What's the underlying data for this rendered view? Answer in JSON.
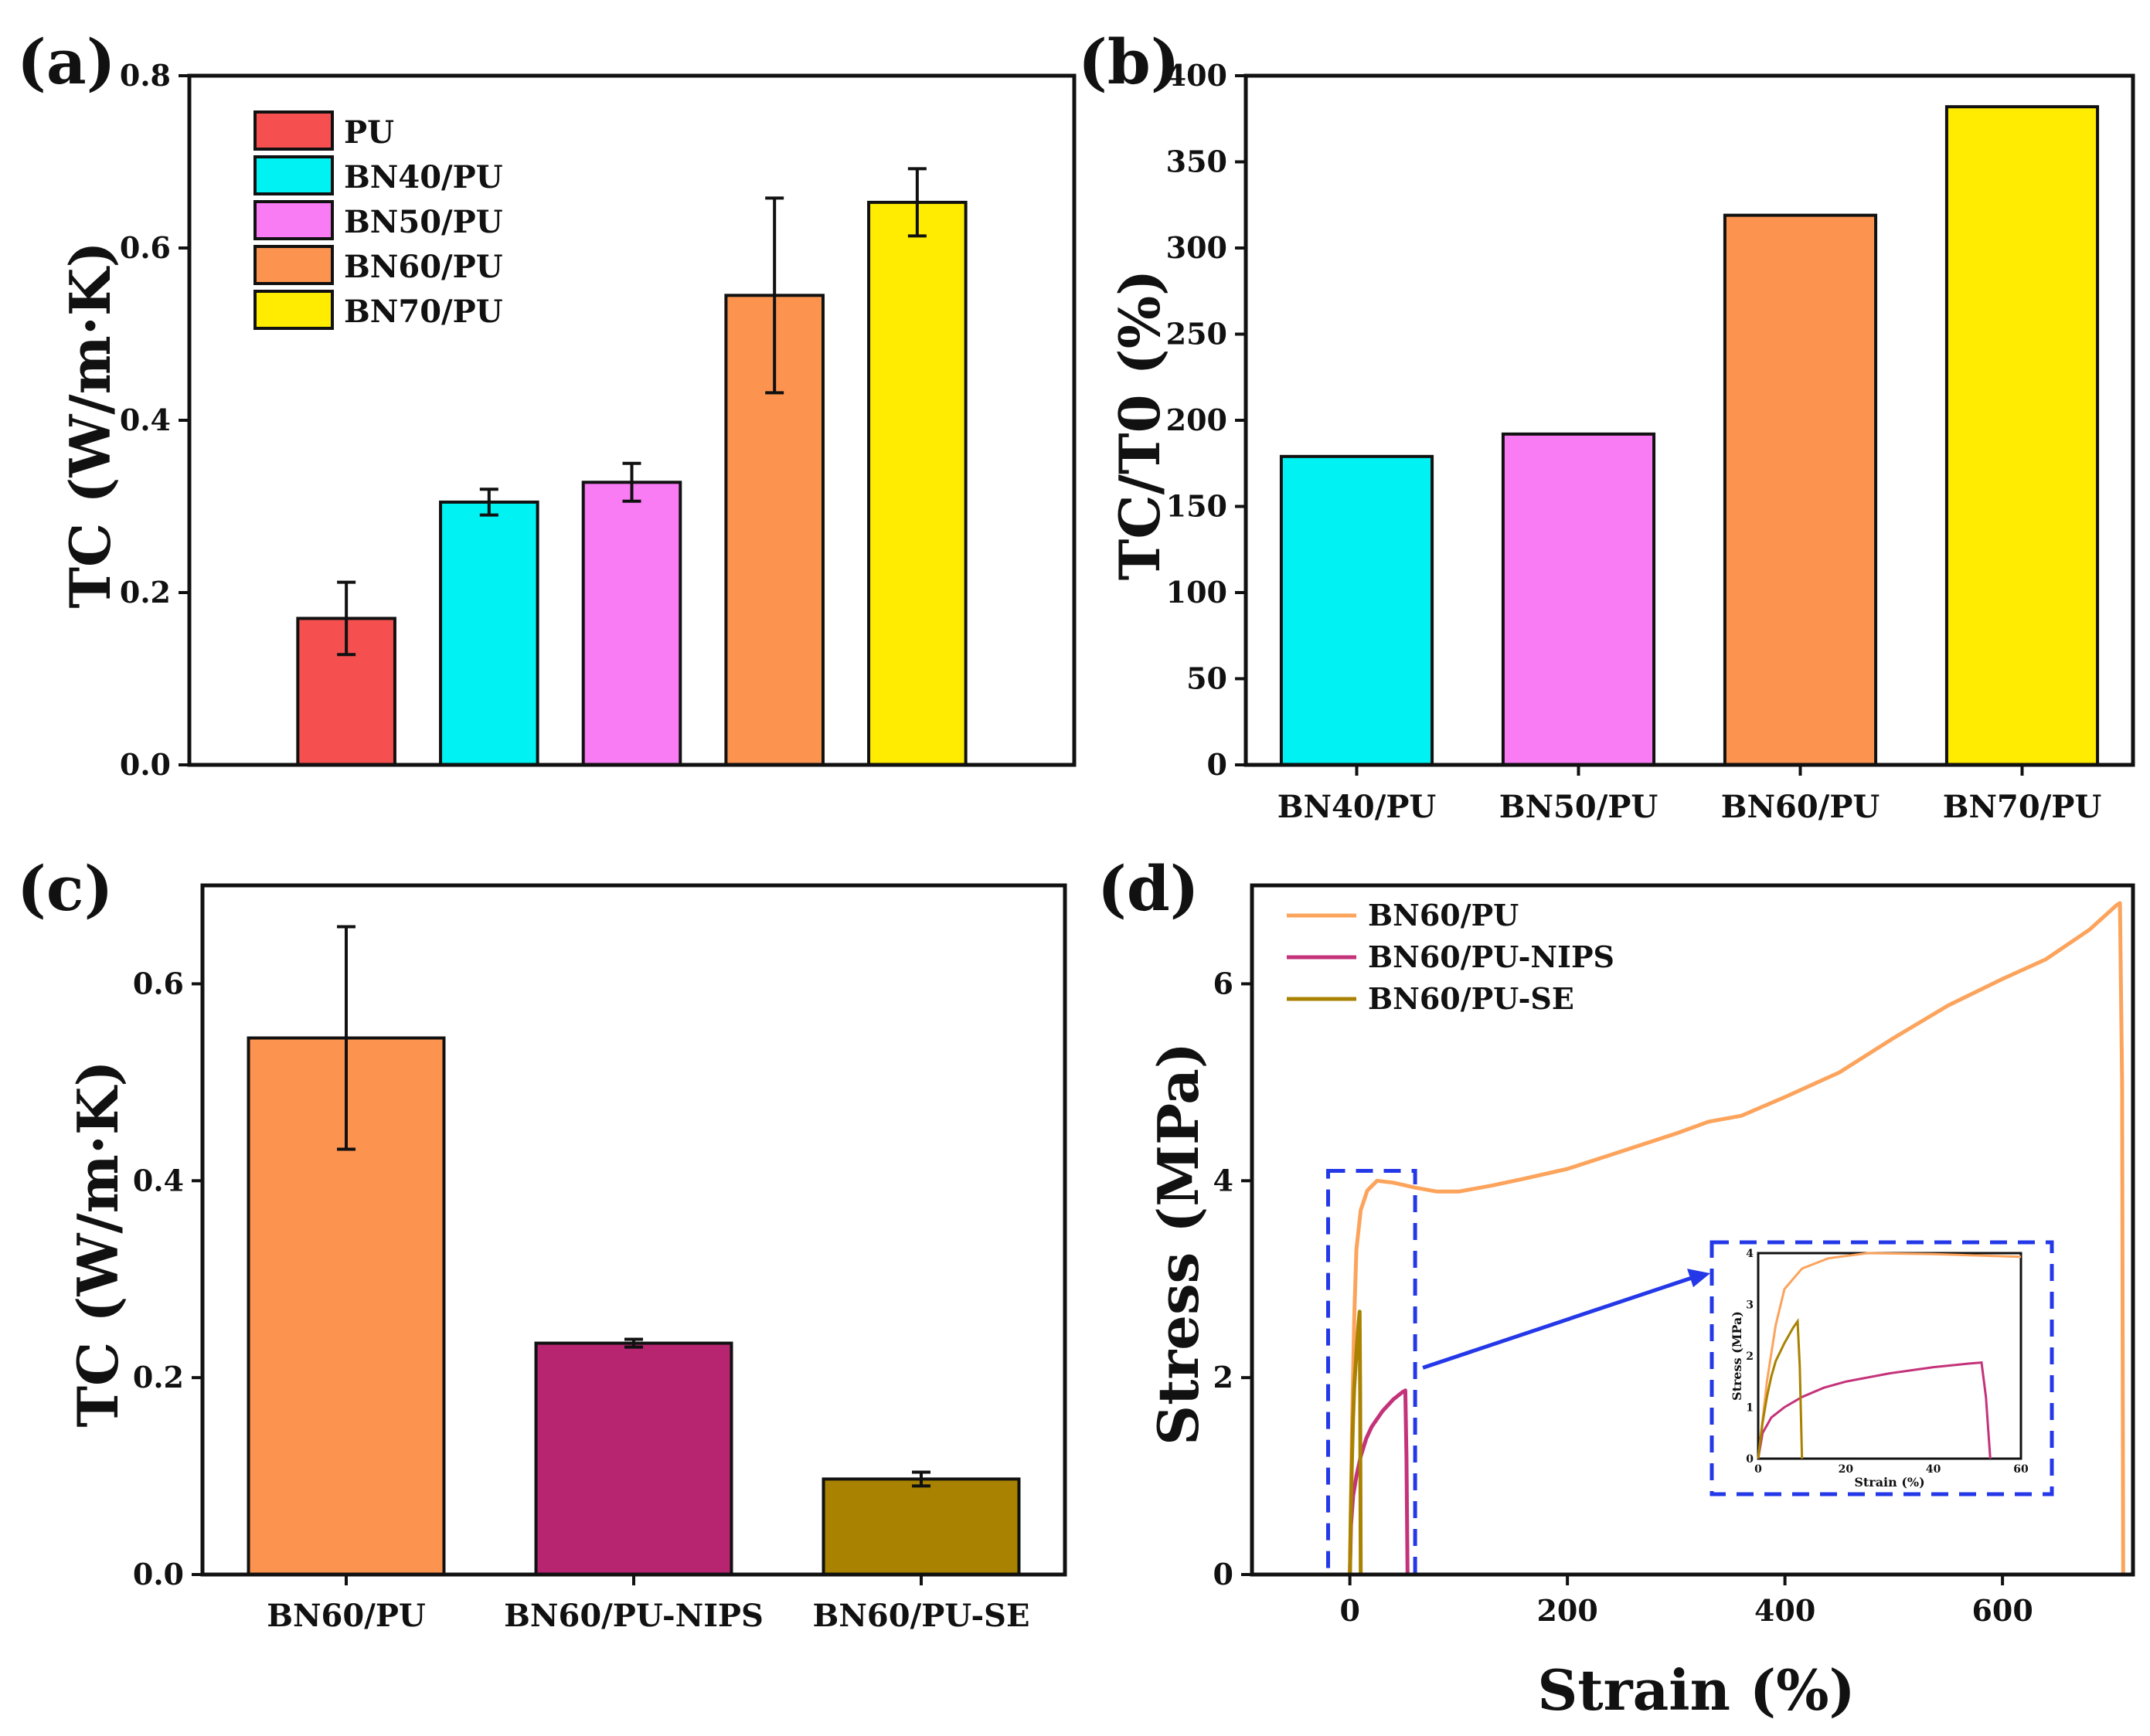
{
  "chart_data": [
    {
      "panel": "(a)",
      "type": "bar",
      "ylabel": "TC (W/m·K)",
      "xlabel": "",
      "ylim": [
        0,
        0.8
      ],
      "yticks": [
        "0.0",
        "0.2",
        "0.4",
        "0.6",
        "0.8"
      ],
      "categories": [
        "PU",
        "BN40/PU",
        "BN50/PU",
        "BN60/PU",
        "BN70/PU"
      ],
      "values": [
        0.17,
        0.305,
        0.328,
        0.545,
        0.653
      ],
      "errors": [
        0.042,
        0.015,
        0.022,
        0.113,
        0.039
      ],
      "colors": [
        "#f5504f",
        "#00f2f2",
        "#fa7cf5",
        "#fc9450",
        "#ffec00"
      ],
      "legend": [
        "PU",
        "BN40/PU",
        "BN50/PU",
        "BN60/PU",
        "BN70/PU"
      ],
      "legend_position": "top-left",
      "show_category_labels": false
    },
    {
      "panel": "(b)",
      "type": "bar",
      "ylabel": "TC/T0 (%)",
      "xlabel": "",
      "ylim": [
        0,
        400
      ],
      "yticks": [
        "0",
        "50",
        "100",
        "150",
        "200",
        "250",
        "300",
        "350",
        "400"
      ],
      "categories": [
        "BN40/PU",
        "BN50/PU",
        "BN60/PU",
        "BN70/PU"
      ],
      "values": [
        179,
        192,
        319,
        382
      ],
      "colors": [
        "#00f2f2",
        "#fa7cf5",
        "#fc9450",
        "#ffec00"
      ],
      "show_category_labels": true
    },
    {
      "panel": "(c)",
      "type": "bar",
      "ylabel": "TC (W/m·K)",
      "xlabel": "",
      "ylim": [
        0,
        0.7
      ],
      "yticks": [
        "0.0",
        "0.2",
        "0.4",
        "0.6"
      ],
      "categories": [
        "BN60/PU",
        "BN60/PU-NIPS",
        "BN60/PU-SE"
      ],
      "values": [
        0.545,
        0.235,
        0.097
      ],
      "errors": [
        0.113,
        0.004,
        0.007
      ],
      "colors": [
        "#fc9450",
        "#b72571",
        "#a88200"
      ],
      "show_category_labels": true
    },
    {
      "panel": "(d)",
      "type": "line",
      "xlabel": "Strain (%)",
      "ylabel": "Stress (MPa)",
      "xlim": [
        -90,
        720
      ],
      "ylim": [
        0,
        7
      ],
      "xticks": [
        "0",
        "200",
        "400",
        "600"
      ],
      "yticks": [
        "0",
        "2",
        "4",
        "6"
      ],
      "legend_position": "top-left",
      "series": [
        {
          "name": "BN60/PU",
          "color": "#fca35c",
          "points": [
            [
              0,
              0
            ],
            [
              2,
              1.5
            ],
            [
              4,
              2.6
            ],
            [
              6,
              3.3
            ],
            [
              10,
              3.7
            ],
            [
              16,
              3.9
            ],
            [
              25,
              4.0
            ],
            [
              40,
              3.98
            ],
            [
              60,
              3.93
            ],
            [
              80,
              3.89
            ],
            [
              100,
              3.89
            ],
            [
              130,
              3.95
            ],
            [
              160,
              4.02
            ],
            [
              200,
              4.12
            ],
            [
              250,
              4.3
            ],
            [
              300,
              4.48
            ],
            [
              330,
              4.6
            ],
            [
              360,
              4.66
            ],
            [
              400,
              4.85
            ],
            [
              450,
              5.1
            ],
            [
              500,
              5.45
            ],
            [
              550,
              5.78
            ],
            [
              600,
              6.05
            ],
            [
              640,
              6.25
            ],
            [
              680,
              6.55
            ],
            [
              705,
              6.8
            ],
            [
              708,
              6.82
            ],
            [
              710,
              5
            ],
            [
              711,
              0
            ]
          ]
        },
        {
          "name": "BN60/PU-NIPS",
          "color": "#c4327a",
          "points": [
            [
              0,
              0
            ],
            [
              1,
              0.5
            ],
            [
              3,
              0.8
            ],
            [
              6,
              1.0
            ],
            [
              10,
              1.2
            ],
            [
              15,
              1.38
            ],
            [
              20,
              1.5
            ],
            [
              30,
              1.66
            ],
            [
              40,
              1.78
            ],
            [
              48,
              1.85
            ],
            [
              51,
              1.87
            ],
            [
              52,
              1.2
            ],
            [
              53,
              0
            ]
          ]
        },
        {
          "name": "BN60/PU-SE",
          "color": "#a88200",
          "points": [
            [
              0,
              0
            ],
            [
              1,
              0.7
            ],
            [
              2,
              1.2
            ],
            [
              3,
              1.6
            ],
            [
              4,
              1.9
            ],
            [
              6,
              2.25
            ],
            [
              8,
              2.55
            ],
            [
              9,
              2.67
            ],
            [
              9.5,
              1.8
            ],
            [
              10,
              0
            ]
          ]
        }
      ],
      "inset": {
        "xlim": [
          0,
          60
        ],
        "ylim": [
          0,
          4
        ],
        "xticks": [
          "0",
          "20",
          "40",
          "60"
        ],
        "yticks": [
          "0",
          "1",
          "2",
          "3",
          "4"
        ],
        "xlabel": "Strain (%)",
        "ylabel": "Stress (MPa)"
      }
    }
  ]
}
